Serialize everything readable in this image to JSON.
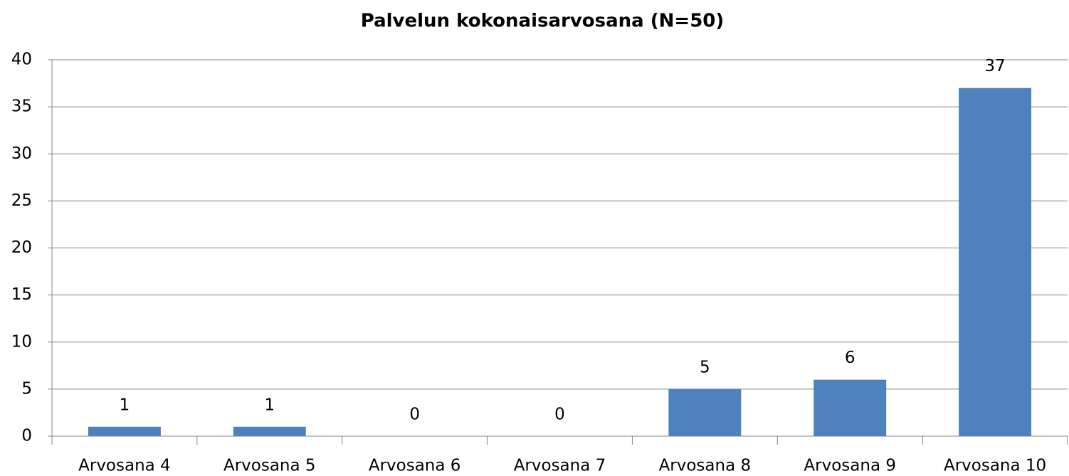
{
  "chart_data": {
    "type": "bar",
    "title": "Palvelun kokonaisarvosana (N=50)",
    "categories": [
      "Arvosana 4",
      "Arvosana 5",
      "Arvosana 6",
      "Arvosana 7",
      "Arvosana 8",
      "Arvosana 9",
      "Arvosana 10"
    ],
    "values": [
      1,
      1,
      0,
      0,
      5,
      6,
      37
    ],
    "color": "#4f81bd",
    "ylim": [
      0,
      40
    ],
    "yticks": [
      0,
      5,
      10,
      15,
      20,
      25,
      30,
      35,
      40
    ],
    "grid": true
  }
}
